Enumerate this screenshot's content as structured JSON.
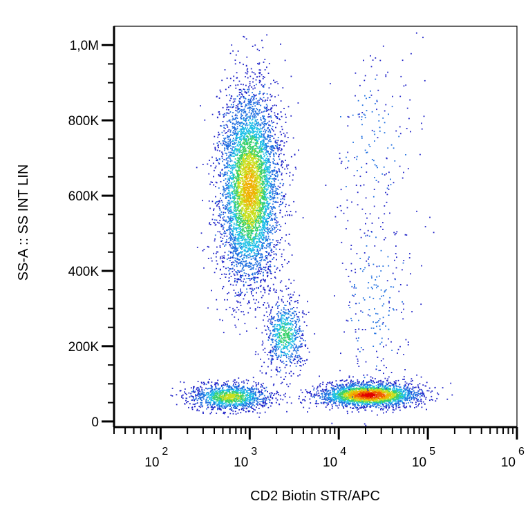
{
  "chart_data": {
    "type": "scatter",
    "subtype": "flow-cytometry-density-dot-plot",
    "title": "",
    "xlabel": "CD2 Biotin STR/APC",
    "ylabel": "SS-A :: SS INT LIN",
    "x_scale": "log",
    "y_scale": "linear",
    "xlim": [
      30,
      1000000
    ],
    "ylim": [
      -15000,
      1050000
    ],
    "x_ticks": [
      {
        "value": 100,
        "base": "10",
        "exp": "2"
      },
      {
        "value": 1000,
        "base": "10",
        "exp": "3"
      },
      {
        "value": 10000,
        "base": "10",
        "exp": "4"
      },
      {
        "value": 100000,
        "base": "10",
        "exp": "5"
      },
      {
        "value": 1000000,
        "base": "10",
        "exp": "6"
      }
    ],
    "y_ticks": [
      {
        "value": 0,
        "label": "0"
      },
      {
        "value": 200000,
        "label": "200K"
      },
      {
        "value": 400000,
        "label": "400K"
      },
      {
        "value": 600000,
        "label": "600K"
      },
      {
        "value": 800000,
        "label": "800K"
      },
      {
        "value": 1000000,
        "label": "1,0M"
      }
    ],
    "grid": false,
    "legend": "none",
    "color_scale": [
      "#1f22c8",
      "#1f6fe0",
      "#1fc0e8",
      "#3bd16a",
      "#c8e020",
      "#f0b000",
      "#f05a00",
      "#e00000"
    ],
    "populations": [
      {
        "center_x": 1000,
        "center_y": 620000,
        "spread_log_x": 0.17,
        "spread_y": 130000,
        "count": 5200,
        "peak_density": 5
      },
      {
        "center_x": 2500,
        "center_y": 230000,
        "spread_log_x": 0.11,
        "spread_y": 50000,
        "count": 700,
        "peak_density": 3
      },
      {
        "center_x": 600,
        "center_y": 65000,
        "spread_log_x": 0.22,
        "spread_y": 18000,
        "count": 1300,
        "peak_density": 4
      },
      {
        "center_x": 22000,
        "center_y": 70000,
        "spread_log_x": 0.28,
        "spread_y": 16000,
        "count": 2600,
        "peak_density": 7
      },
      {
        "center_x": 25000,
        "center_y": 320000,
        "spread_log_x": 0.2,
        "spread_y": 140000,
        "count": 260,
        "peak_density": 1
      },
      {
        "center_x": 25000,
        "center_y": 750000,
        "spread_log_x": 0.25,
        "spread_y": 120000,
        "count": 160,
        "peak_density": 1
      }
    ]
  }
}
